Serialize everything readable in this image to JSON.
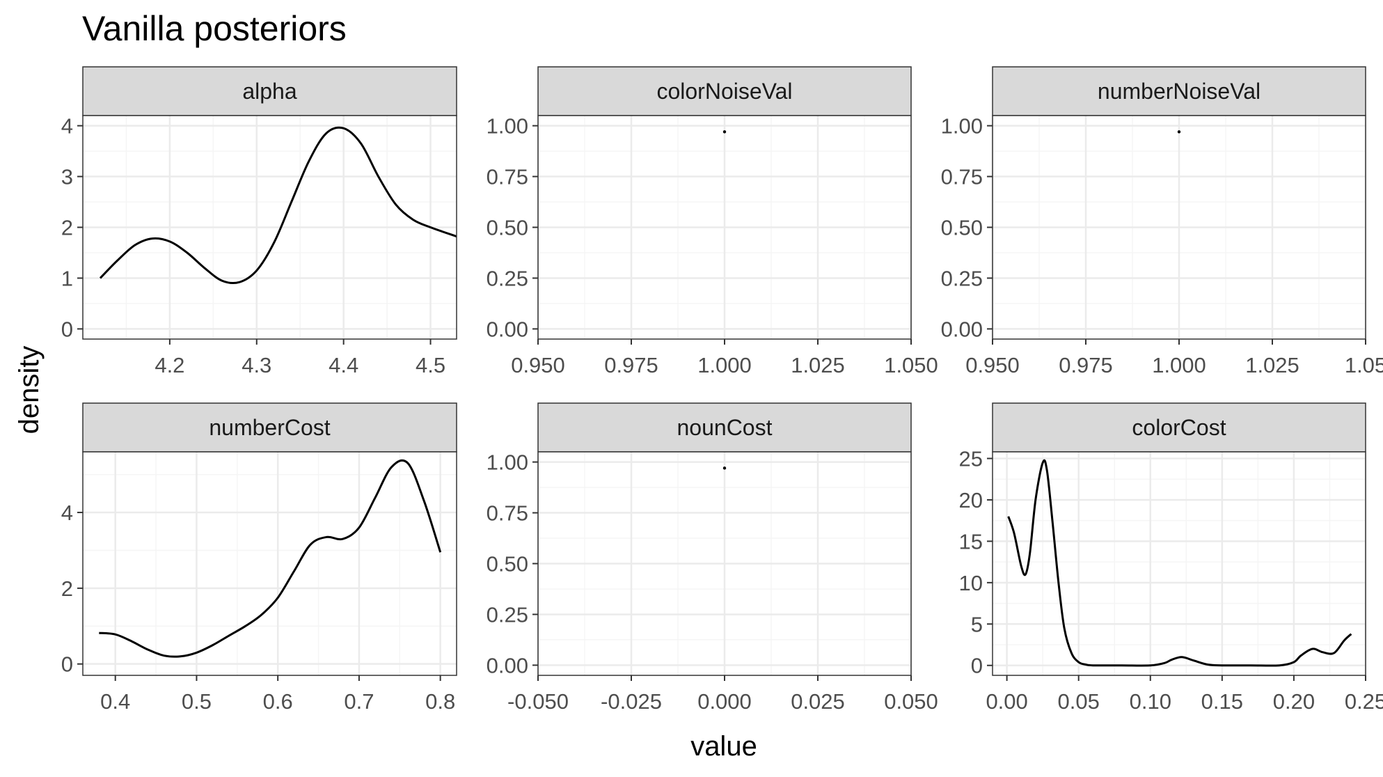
{
  "title": "Vanilla posteriors",
  "xlabel": "value",
  "ylabel": "density",
  "colors": {
    "strip_bg": "#d9d9d9",
    "grid_major": "#ebebeb",
    "grid_minor": "#f5f5f5",
    "frame": "#333333",
    "line": "#000000",
    "tick_text": "#4d4d4d"
  },
  "chart_data": [
    {
      "type": "line",
      "facet": "alpha",
      "xlim": [
        4.1,
        4.53
      ],
      "ylim": [
        -0.2,
        4.2
      ],
      "xticks": [
        4.2,
        4.3,
        4.4,
        4.5
      ],
      "xtick_labels": [
        "4.2",
        "4.3",
        "4.4",
        "4.5"
      ],
      "yticks": [
        0,
        1,
        2,
        3,
        4
      ],
      "ytick_labels": [
        "0",
        "1",
        "2",
        "3",
        "4"
      ],
      "x": [
        4.12,
        4.14,
        4.16,
        4.18,
        4.2,
        4.22,
        4.24,
        4.26,
        4.28,
        4.3,
        4.32,
        4.34,
        4.36,
        4.38,
        4.4,
        4.42,
        4.44,
        4.46,
        4.48,
        4.5,
        4.53
      ],
      "y": [
        1.0,
        1.35,
        1.65,
        1.78,
        1.72,
        1.5,
        1.2,
        0.95,
        0.92,
        1.15,
        1.7,
        2.5,
        3.3,
        3.85,
        3.95,
        3.65,
        3.0,
        2.45,
        2.15,
        2.0,
        1.82
      ]
    },
    {
      "type": "scatter",
      "facet": "colorNoiseVal",
      "xlim": [
        0.95,
        1.05
      ],
      "ylim": [
        -0.05,
        1.05
      ],
      "xticks": [
        0.95,
        0.975,
        1.0,
        1.025,
        1.05
      ],
      "xtick_labels": [
        "0.950",
        "0.975",
        "1.000",
        "1.025",
        "1.050"
      ],
      "yticks": [
        0,
        0.25,
        0.5,
        0.75,
        1.0
      ],
      "ytick_labels": [
        "0.00",
        "0.25",
        "0.50",
        "0.75",
        "1.00"
      ],
      "x": [
        1.0
      ],
      "y": [
        0.97
      ]
    },
    {
      "type": "scatter",
      "facet": "numberNoiseVal",
      "xlim": [
        0.95,
        1.05
      ],
      "ylim": [
        -0.05,
        1.05
      ],
      "xticks": [
        0.95,
        0.975,
        1.0,
        1.025,
        1.05
      ],
      "xtick_labels": [
        "0.950",
        "0.975",
        "1.000",
        "1.025",
        "1.05"
      ],
      "yticks": [
        0,
        0.25,
        0.5,
        0.75,
        1.0
      ],
      "ytick_labels": [
        "0.00",
        "0.25",
        "0.50",
        "0.75",
        "1.00"
      ],
      "x": [
        1.0
      ],
      "y": [
        0.97
      ]
    },
    {
      "type": "line",
      "facet": "numberCost",
      "xlim": [
        0.36,
        0.82
      ],
      "ylim": [
        -0.3,
        5.6
      ],
      "xticks": [
        0.4,
        0.5,
        0.6,
        0.7,
        0.8
      ],
      "xtick_labels": [
        "0.4",
        "0.5",
        "0.6",
        "0.7",
        "0.8"
      ],
      "yticks": [
        0,
        2,
        4
      ],
      "ytick_labels": [
        "0",
        "2",
        "4"
      ],
      "x": [
        0.38,
        0.4,
        0.42,
        0.44,
        0.46,
        0.48,
        0.5,
        0.52,
        0.54,
        0.56,
        0.58,
        0.6,
        0.62,
        0.64,
        0.66,
        0.68,
        0.7,
        0.72,
        0.74,
        0.76,
        0.78,
        0.8
      ],
      "y": [
        0.82,
        0.78,
        0.6,
        0.38,
        0.22,
        0.2,
        0.3,
        0.5,
        0.75,
        1.0,
        1.3,
        1.75,
        2.45,
        3.15,
        3.35,
        3.3,
        3.6,
        4.4,
        5.2,
        5.3,
        4.3,
        2.95
      ]
    },
    {
      "type": "scatter",
      "facet": "nounCost",
      "xlim": [
        -0.05,
        0.05
      ],
      "ylim": [
        -0.05,
        1.05
      ],
      "xticks": [
        -0.05,
        -0.025,
        0.0,
        0.025,
        0.05
      ],
      "xtick_labels": [
        "-0.050",
        "-0.025",
        "0.000",
        "0.025",
        "0.050"
      ],
      "yticks": [
        0,
        0.25,
        0.5,
        0.75,
        1.0
      ],
      "ytick_labels": [
        "0.00",
        "0.25",
        "0.50",
        "0.75",
        "1.00"
      ],
      "x": [
        0.0
      ],
      "y": [
        0.97
      ]
    },
    {
      "type": "line",
      "facet": "colorCost",
      "xlim": [
        -0.01,
        0.25
      ],
      "ylim": [
        -1.2,
        25.8
      ],
      "xticks": [
        0.0,
        0.05,
        0.1,
        0.15,
        0.2,
        0.25
      ],
      "xtick_labels": [
        "0.00",
        "0.05",
        "0.10",
        "0.15",
        "0.20",
        "0.25"
      ],
      "yticks": [
        0,
        5,
        10,
        15,
        20,
        25
      ],
      "ytick_labels": [
        "0",
        "5",
        "10",
        "15",
        "20",
        "25"
      ],
      "x": [
        0.001,
        0.005,
        0.01,
        0.013,
        0.016,
        0.02,
        0.025,
        0.028,
        0.032,
        0.036,
        0.04,
        0.045,
        0.05,
        0.055,
        0.06,
        0.08,
        0.1,
        0.11,
        0.115,
        0.122,
        0.13,
        0.14,
        0.15,
        0.17,
        0.19,
        0.2,
        0.205,
        0.213,
        0.22,
        0.228,
        0.235,
        0.24
      ],
      "y": [
        18.0,
        16.0,
        12.0,
        11.0,
        13.5,
        20.0,
        24.5,
        23.5,
        17.0,
        10.0,
        4.5,
        1.5,
        0.4,
        0.1,
        0.0,
        0.0,
        0.0,
        0.3,
        0.7,
        1.0,
        0.6,
        0.1,
        0.0,
        0.0,
        0.0,
        0.4,
        1.2,
        2.0,
        1.6,
        1.5,
        3.0,
        3.8
      ]
    }
  ]
}
